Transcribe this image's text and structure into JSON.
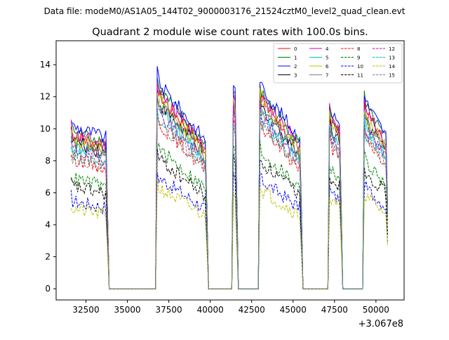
{
  "figure": {
    "suptitle": "Data file: modeM0/AS1A05_144T02_9000003176_21524cztM0_level2_quad_clean.evt",
    "offset_label": "+3.067e8"
  },
  "chart_data": {
    "type": "line",
    "title": "Quadrant 2 module wise count rates with 100.0s bins.",
    "xlabel": "",
    "ylabel": "",
    "x_offset": 306700000,
    "xlim": [
      30700,
      51700
    ],
    "ylim": [
      -0.7,
      15.5
    ],
    "x_ticks": [
      32500,
      35000,
      37500,
      40000,
      42500,
      45000,
      47500,
      50000
    ],
    "y_ticks": [
      0,
      2,
      4,
      6,
      8,
      10,
      12,
      14
    ],
    "observing_windows": [
      {
        "start": 31600,
        "end": 33850,
        "peak": 1.0,
        "slope": -0.08
      },
      {
        "start": 36750,
        "end": 39800,
        "peak": 1.28,
        "slope": -0.3
      },
      {
        "start": 41400,
        "end": 41650,
        "peak": 1.15,
        "slope": 0.0
      },
      {
        "start": 42950,
        "end": 45550,
        "peak": 1.25,
        "slope": -0.28
      },
      {
        "start": 47150,
        "end": 47950,
        "peak": 1.1,
        "slope": -0.1
      },
      {
        "start": 49250,
        "end": 50750,
        "peak": 1.17,
        "slope": -0.22
      }
    ],
    "gap_level": 0,
    "series": [
      {
        "name": "0",
        "level": 9.6,
        "color": "#ff0000",
        "dash": "solid"
      },
      {
        "name": "1",
        "level": 9.9,
        "color": "#008000",
        "dash": "solid"
      },
      {
        "name": "2",
        "level": 10.2,
        "color": "#0000ff",
        "dash": "solid"
      },
      {
        "name": "3",
        "level": 9.2,
        "color": "#000000",
        "dash": "solid"
      },
      {
        "name": "4",
        "level": 9.7,
        "color": "#bf00bf",
        "dash": "solid"
      },
      {
        "name": "5",
        "level": 8.9,
        "color": "#00bfbf",
        "dash": "solid"
      },
      {
        "name": "6",
        "level": 9.4,
        "color": "#bfbf00",
        "dash": "solid"
      },
      {
        "name": "7",
        "level": 9.1,
        "color": "#808080",
        "dash": "solid"
      },
      {
        "name": "8",
        "level": 8.2,
        "color": "#ff0000",
        "dash": "dashed"
      },
      {
        "name": "9",
        "level": 6.9,
        "color": "#008000",
        "dash": "dashed"
      },
      {
        "name": "10",
        "level": 5.5,
        "color": "#0000ff",
        "dash": "dashed"
      },
      {
        "name": "11",
        "level": 6.4,
        "color": "#000000",
        "dash": "dashed"
      },
      {
        "name": "12",
        "level": 8.7,
        "color": "#bf00bf",
        "dash": "dashed"
      },
      {
        "name": "13",
        "level": 8.5,
        "color": "#00bfbf",
        "dash": "dashed"
      },
      {
        "name": "14",
        "level": 5.0,
        "color": "#bfbf00",
        "dash": "dashed"
      },
      {
        "name": "15",
        "level": 8.3,
        "color": "#808080",
        "dash": "dashed"
      }
    ]
  }
}
